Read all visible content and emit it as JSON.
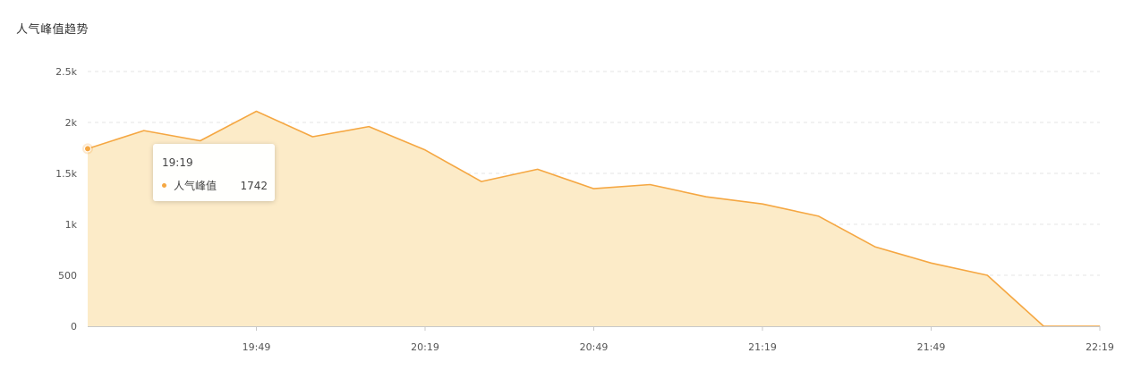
{
  "title": "人气峰值趋势",
  "colors": {
    "line": "#f5a742",
    "area": "#fcebc8",
    "grid": "#e6e6e6",
    "axis": "#c8c8c8"
  },
  "tooltip": {
    "time": "19:19",
    "series_name": "人气峰值",
    "value": "1742"
  },
  "chart_data": {
    "type": "area",
    "x_minutes": [
      0,
      10,
      20,
      30,
      40,
      50,
      60,
      70,
      80,
      90,
      100,
      110,
      120,
      130,
      140,
      150,
      160,
      170,
      180
    ],
    "values": [
      1742,
      1920,
      1820,
      2110,
      1860,
      1960,
      1730,
      1420,
      1540,
      1350,
      1390,
      1270,
      1200,
      1080,
      780,
      620,
      500,
      0,
      0
    ],
    "start_time": "19:19",
    "x_tick_labels": [
      "19:49",
      "20:19",
      "20:49",
      "21:19",
      "21:49",
      "22:19"
    ],
    "y_tick_labels": [
      "0",
      "500",
      "1k",
      "1.5k",
      "2k",
      "2.5k"
    ],
    "ylim": [
      0,
      2500
    ],
    "xlabel": "",
    "ylabel": "",
    "grid": true,
    "highlighted_index": 0
  }
}
